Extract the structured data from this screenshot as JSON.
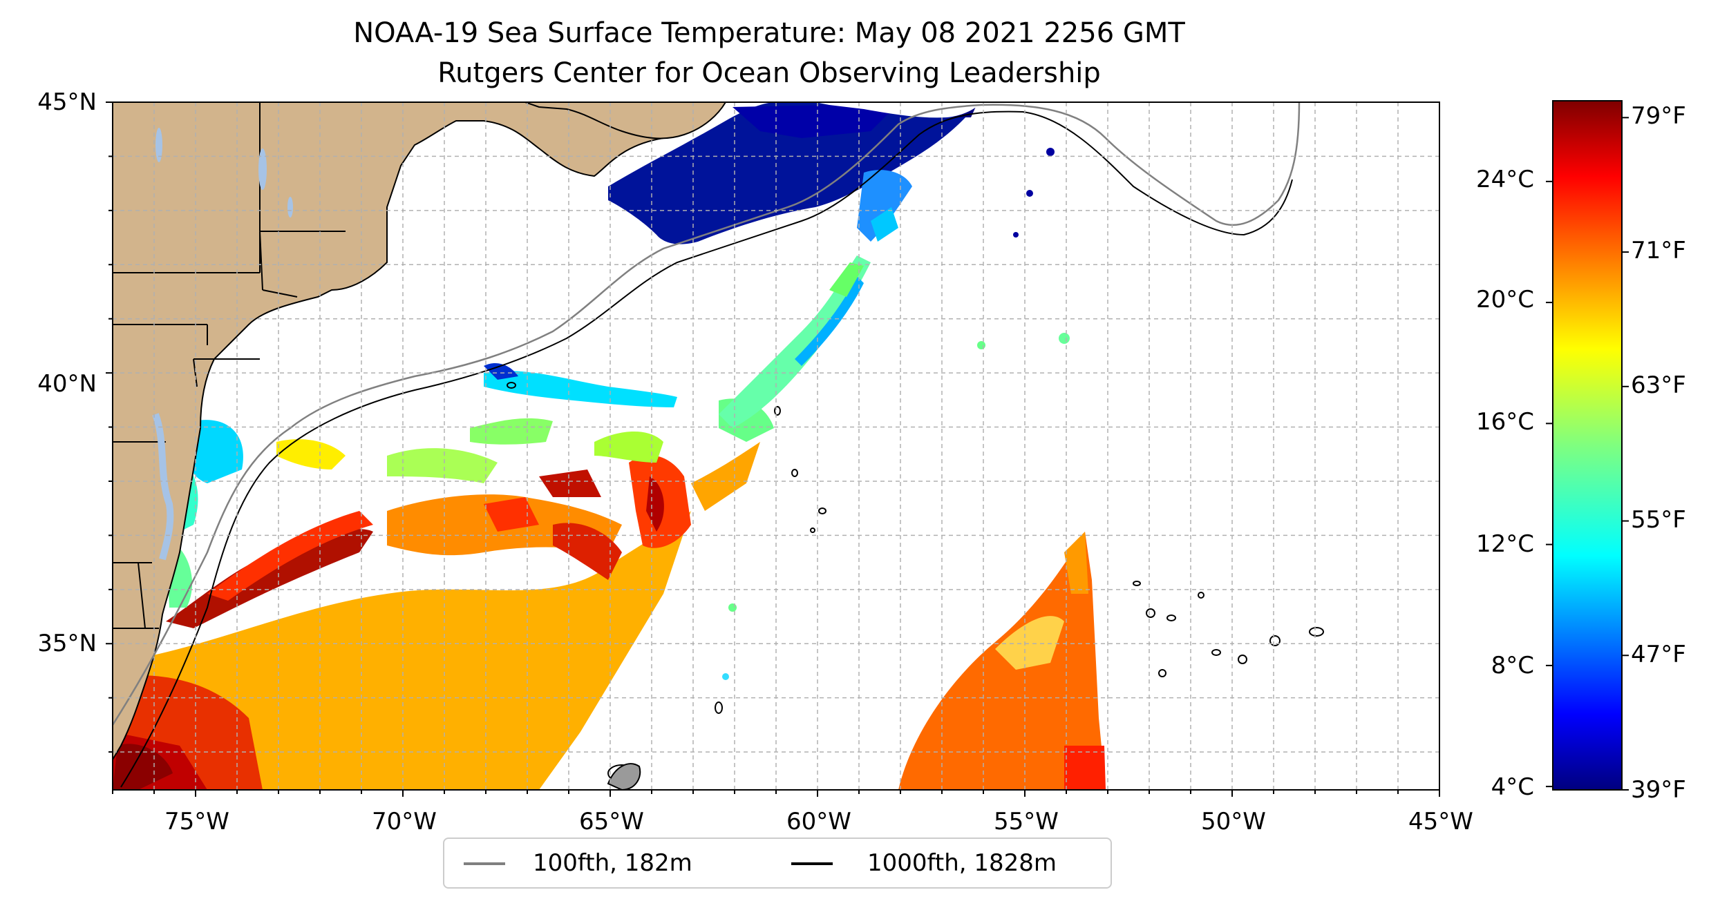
{
  "title": {
    "line1": "NOAA-19 Sea Surface Temperature: May 08 2021 2256 GMT",
    "line2": "Rutgers Center for Ocean Observing Leadership"
  },
  "map": {
    "lon_range": [
      -77,
      -45
    ],
    "lat_range": [
      32.3,
      45
    ],
    "lat_ticks": [
      "45°N",
      "40°N",
      "35°N"
    ],
    "lon_ticks": [
      "75°W",
      "70°W",
      "65°W",
      "60°W",
      "55°W",
      "50°W",
      "45°W"
    ],
    "grid": "dashed, every 1°",
    "colors": {
      "land": "#d2b48c",
      "lakes": "#a6c3e6",
      "coast": "#000000",
      "isobath_100fth": "#808080",
      "isobath_1000fth": "#000000"
    }
  },
  "colorbar": {
    "colormap": "jet",
    "celsius_ticks": [
      "24°C",
      "20°C",
      "16°C",
      "12°C",
      "8°C",
      "4°C"
    ],
    "fahrenheit_ticks": [
      "79°F",
      "71°F",
      "63°F",
      "55°F",
      "47°F",
      "39°F"
    ],
    "range_f": [
      39,
      80
    ]
  },
  "legend": {
    "items": [
      {
        "label": "100fth, 182m",
        "color": "#808080"
      },
      {
        "label": "1000fth, 1828m",
        "color": "#000000"
      }
    ]
  }
}
